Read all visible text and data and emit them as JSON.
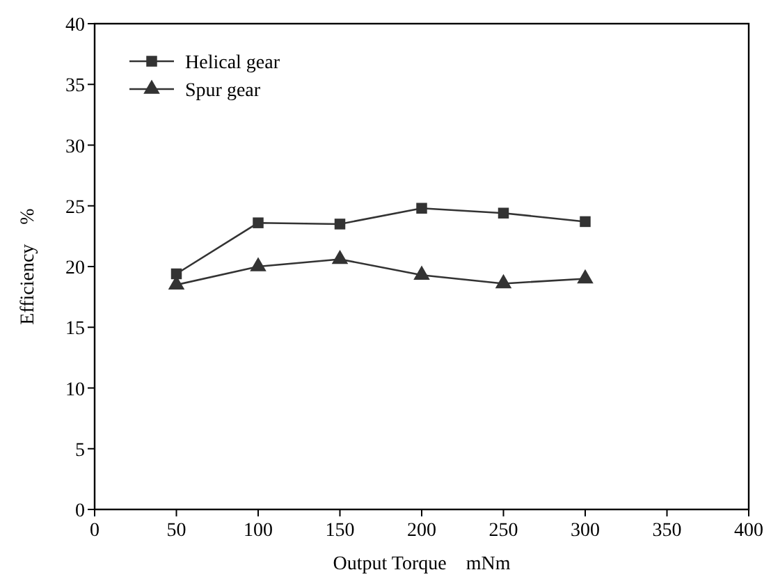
{
  "chart_data": {
    "type": "line",
    "xlabel": "Output Torque    mNm",
    "ylabel": "Efficiency    %",
    "x": [
      50,
      100,
      150,
      200,
      250,
      300
    ],
    "series": [
      {
        "name": "Helical gear",
        "color": "#333333",
        "marker": "square",
        "values": [
          19.4,
          23.6,
          23.5,
          24.8,
          24.4,
          23.7
        ]
      },
      {
        "name": "Spur gear",
        "color": "#333333",
        "marker": "triangle",
        "values": [
          18.5,
          20.0,
          20.6,
          19.3,
          18.6,
          19.0
        ]
      }
    ],
    "xlim": [
      0,
      400
    ],
    "xticks": [
      0,
      50,
      100,
      150,
      200,
      250,
      300,
      350,
      400
    ],
    "ylim": [
      0,
      40
    ],
    "yticks": [
      0,
      5,
      10,
      15,
      20,
      25,
      30,
      35,
      40
    ],
    "grid": false,
    "legend": "top left",
    "line_style": "solid"
  }
}
